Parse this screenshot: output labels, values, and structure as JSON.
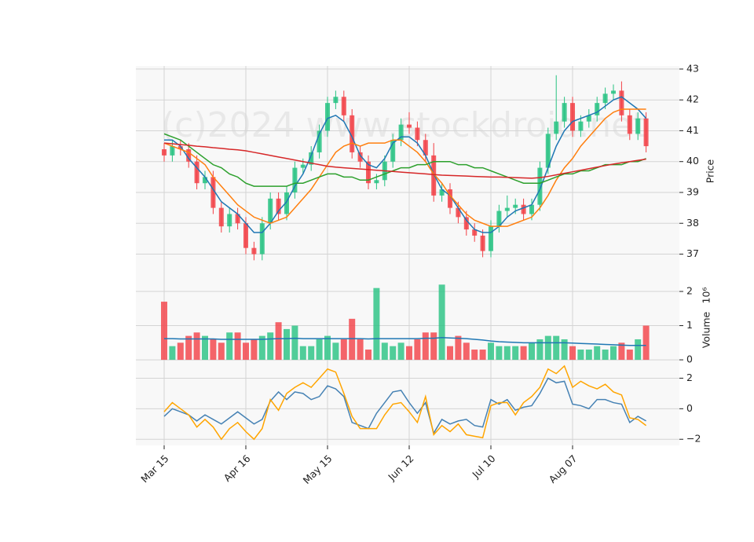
{
  "chart_data": {
    "type": "candlestick",
    "watermark": "(c)2024 www.stockdroid.net",
    "categories": [
      "Mar 15",
      null,
      null,
      null,
      null,
      null,
      null,
      null,
      null,
      null,
      "Apr 16",
      null,
      null,
      null,
      null,
      null,
      null,
      null,
      null,
      null,
      "May 15",
      null,
      null,
      null,
      null,
      null,
      null,
      null,
      null,
      null,
      "Jun 12",
      null,
      null,
      null,
      null,
      null,
      null,
      null,
      null,
      null,
      "Jul 10",
      null,
      null,
      null,
      null,
      null,
      null,
      null,
      null,
      null,
      "Aug 07",
      null,
      null,
      null,
      null,
      null,
      null,
      null,
      null,
      null
    ],
    "open": [
      40.4,
      40.2,
      40.5,
      40.4,
      40.0,
      39.3,
      39.5,
      38.5,
      37.9,
      38.3,
      38.0,
      37.2,
      37.0,
      38.0,
      38.8,
      38.3,
      39.0,
      39.8,
      39.9,
      40.3,
      41.0,
      41.9,
      42.1,
      41.5,
      40.3,
      40.0,
      39.3,
      39.4,
      40.0,
      40.7,
      41.2,
      41.1,
      40.7,
      40.2,
      38.9,
      39.1,
      38.5,
      38.2,
      37.8,
      37.6,
      37.1,
      37.9,
      38.4,
      38.5,
      38.6,
      38.3,
      38.6,
      39.8,
      40.9,
      41.3,
      41.9,
      41.0,
      41.3,
      41.5,
      41.9,
      42.2,
      42.3,
      41.5,
      40.9,
      41.4
    ],
    "high": [
      40.6,
      40.7,
      40.7,
      40.6,
      40.2,
      39.7,
      39.7,
      38.7,
      38.5,
      38.5,
      38.2,
      37.4,
      38.2,
      39.0,
      39.0,
      39.2,
      40.0,
      40.1,
      40.5,
      41.2,
      42.1,
      42.3,
      42.3,
      41.7,
      40.5,
      40.2,
      39.6,
      40.2,
      40.9,
      41.4,
      41.6,
      41.3,
      40.9,
      40.6,
      39.3,
      39.3,
      38.7,
      38.4,
      38.0,
      37.8,
      38.1,
      38.6,
      38.9,
      38.8,
      38.8,
      38.8,
      40.0,
      41.1,
      42.8,
      42.1,
      42.1,
      41.5,
      41.7,
      42.1,
      42.4,
      42.5,
      42.6,
      41.7,
      41.6,
      41.6
    ],
    "low": [
      40.0,
      40.0,
      40.2,
      39.8,
      39.1,
      39.1,
      38.3,
      37.7,
      37.7,
      37.8,
      37.0,
      36.8,
      36.8,
      37.8,
      38.1,
      38.1,
      38.8,
      39.6,
      39.7,
      40.1,
      40.8,
      41.7,
      41.3,
      40.1,
      39.8,
      39.1,
      39.1,
      39.2,
      39.8,
      40.5,
      40.9,
      40.5,
      40.0,
      38.7,
      38.7,
      38.3,
      38.0,
      37.6,
      37.4,
      36.9,
      36.9,
      37.7,
      38.2,
      38.3,
      38.1,
      38.1,
      38.4,
      39.6,
      40.7,
      41.1,
      40.8,
      40.8,
      41.1,
      41.3,
      41.7,
      42.0,
      41.3,
      40.7,
      40.7,
      40.3
    ],
    "close": [
      40.2,
      40.5,
      40.4,
      40.0,
      39.3,
      39.5,
      38.5,
      37.9,
      38.3,
      38.0,
      37.2,
      37.0,
      38.0,
      38.8,
      38.3,
      39.0,
      39.8,
      39.9,
      40.3,
      41.0,
      41.9,
      42.1,
      41.5,
      40.3,
      40.0,
      39.3,
      39.4,
      40.0,
      40.7,
      41.2,
      41.1,
      40.7,
      40.2,
      38.9,
      39.1,
      38.5,
      38.2,
      37.8,
      37.6,
      37.1,
      37.9,
      38.4,
      38.5,
      38.6,
      38.3,
      38.6,
      39.8,
      40.9,
      41.3,
      41.9,
      41.0,
      41.3,
      41.5,
      41.9,
      42.2,
      42.3,
      41.5,
      40.9,
      41.4,
      40.5
    ],
    "up_color": "#26c281",
    "down_color": "#f23f45",
    "moving_averages": [
      {
        "color": "#1f77b4",
        "values": [
          40.7,
          40.7,
          40.5,
          40.1,
          39.8,
          39.5,
          39.1,
          38.7,
          38.5,
          38.3,
          38.0,
          37.7,
          37.7,
          38.0,
          38.4,
          38.7,
          39.2,
          39.6,
          40.2,
          40.9,
          41.4,
          41.5,
          41.3,
          40.8,
          40.2,
          39.9,
          39.8,
          40.1,
          40.6,
          40.8,
          40.8,
          40.6,
          40.2,
          39.6,
          39.1,
          38.9,
          38.5,
          38.1,
          37.8,
          37.7,
          37.7,
          37.9,
          38.2,
          38.4,
          38.5,
          38.6,
          39.1,
          39.8,
          40.5,
          41.0,
          41.3,
          41.4,
          41.5,
          41.6,
          41.8,
          42.0,
          42.1,
          41.9,
          41.7,
          41.4
        ]
      },
      {
        "color": "#ff7f0e",
        "values": [
          40.6,
          40.5,
          40.4,
          40.3,
          40.1,
          39.9,
          39.5,
          39.2,
          38.9,
          38.6,
          38.4,
          38.2,
          38.1,
          38.0,
          38.1,
          38.2,
          38.5,
          38.8,
          39.1,
          39.5,
          39.9,
          40.3,
          40.5,
          40.6,
          40.5,
          40.6,
          40.6,
          40.6,
          40.7,
          40.7,
          40.5,
          40.3,
          40.0,
          39.6,
          39.3,
          38.9,
          38.6,
          38.3,
          38.1,
          38.0,
          37.9,
          37.9,
          37.9,
          38.0,
          38.1,
          38.2,
          38.5,
          38.9,
          39.4,
          39.8,
          40.1,
          40.5,
          40.8,
          41.1,
          41.4,
          41.6,
          41.7,
          41.7,
          41.7,
          41.7
        ]
      },
      {
        "color": "#2ca02c",
        "values": [
          40.9,
          40.8,
          40.7,
          40.5,
          40.3,
          40.1,
          39.9,
          39.8,
          39.6,
          39.5,
          39.3,
          39.2,
          39.2,
          39.2,
          39.2,
          39.2,
          39.3,
          39.3,
          39.4,
          39.5,
          39.6,
          39.6,
          39.5,
          39.5,
          39.4,
          39.4,
          39.5,
          39.6,
          39.7,
          39.8,
          39.8,
          39.9,
          39.9,
          40.0,
          40.0,
          40.0,
          39.9,
          39.9,
          39.8,
          39.8,
          39.7,
          39.6,
          39.5,
          39.4,
          39.3,
          39.3,
          39.3,
          39.4,
          39.5,
          39.6,
          39.6,
          39.7,
          39.7,
          39.8,
          39.9,
          39.9,
          39.9,
          40.0,
          40.0,
          40.1
        ]
      },
      {
        "color": "#d62728",
        "values": [
          40.6,
          40.58,
          40.55,
          40.53,
          40.5,
          40.48,
          40.45,
          40.43,
          40.4,
          40.38,
          40.35,
          40.3,
          40.25,
          40.2,
          40.15,
          40.1,
          40.05,
          40.0,
          39.95,
          39.9,
          39.85,
          39.82,
          39.8,
          39.78,
          39.76,
          39.74,
          39.72,
          39.7,
          39.68,
          39.66,
          39.64,
          39.62,
          39.6,
          39.58,
          39.56,
          39.55,
          39.54,
          39.53,
          39.52,
          39.51,
          39.5,
          39.5,
          39.49,
          39.48,
          39.47,
          39.46,
          39.48,
          39.52,
          39.57,
          39.62,
          39.67,
          39.72,
          39.77,
          39.82,
          39.87,
          39.92,
          39.96,
          40.0,
          40.04,
          40.08
        ]
      }
    ],
    "ylabel": "Price",
    "ylim": [
      36.3,
      43.1
    ],
    "yticks": [
      37,
      38,
      39,
      40,
      41,
      42,
      43
    ],
    "volume": [
      1.7,
      0.4,
      0.5,
      0.7,
      0.8,
      0.7,
      0.6,
      0.5,
      0.8,
      0.8,
      0.5,
      0.6,
      0.7,
      0.8,
      1.1,
      0.9,
      1.0,
      0.4,
      0.4,
      0.6,
      0.7,
      0.5,
      0.6,
      1.2,
      0.6,
      0.3,
      2.1,
      0.5,
      0.4,
      0.5,
      0.4,
      0.6,
      0.8,
      0.8,
      2.2,
      0.4,
      0.7,
      0.5,
      0.3,
      0.3,
      0.5,
      0.4,
      0.4,
      0.4,
      0.4,
      0.5,
      0.6,
      0.7,
      0.7,
      0.6,
      0.4,
      0.3,
      0.3,
      0.4,
      0.3,
      0.4,
      0.5,
      0.3,
      0.6,
      1.0
    ],
    "volume_ma": {
      "color": "#1f77b4",
      "values": [
        0.62,
        0.62,
        0.61,
        0.61,
        0.61,
        0.61,
        0.61,
        0.6,
        0.6,
        0.6,
        0.6,
        0.6,
        0.6,
        0.61,
        0.62,
        0.62,
        0.63,
        0.62,
        0.62,
        0.62,
        0.62,
        0.62,
        0.62,
        0.62,
        0.62,
        0.61,
        0.62,
        0.62,
        0.62,
        0.62,
        0.62,
        0.62,
        0.63,
        0.63,
        0.65,
        0.64,
        0.63,
        0.62,
        0.6,
        0.58,
        0.55,
        0.53,
        0.52,
        0.51,
        0.5,
        0.5,
        0.5,
        0.5,
        0.5,
        0.5,
        0.49,
        0.48,
        0.47,
        0.46,
        0.45,
        0.44,
        0.43,
        0.42,
        0.42,
        0.42
      ]
    },
    "volume_label": "Volume",
    "volume_scale": "10⁶",
    "volume_ylim": [
      -0.09,
      2.46
    ],
    "volume_yticks": [
      0,
      1,
      2
    ],
    "oscillator": [
      {
        "color": "#4682b4",
        "values": [
          -0.5,
          0.0,
          -0.2,
          -0.4,
          -0.8,
          -0.4,
          -0.7,
          -1.0,
          -0.6,
          -0.2,
          -0.6,
          -1.0,
          -0.7,
          0.5,
          1.1,
          0.6,
          1.1,
          1.0,
          0.6,
          0.8,
          1.5,
          1.3,
          0.8,
          -0.9,
          -1.1,
          -1.3,
          -0.3,
          0.4,
          1.1,
          1.2,
          0.4,
          -0.3,
          0.4,
          -1.6,
          -0.7,
          -1.0,
          -0.8,
          -0.7,
          -1.1,
          -1.2,
          0.6,
          0.3,
          0.6,
          -0.1,
          0.1,
          0.2,
          1.0,
          2.0,
          1.7,
          1.8,
          0.3,
          0.2,
          0.0,
          0.6,
          0.6,
          0.4,
          0.3,
          -0.9,
          -0.5,
          -0.8
        ]
      },
      {
        "color": "#ffa500",
        "values": [
          -0.2,
          0.4,
          0.0,
          -0.4,
          -1.2,
          -0.7,
          -1.2,
          -2.0,
          -1.3,
          -0.9,
          -1.5,
          -2.0,
          -1.3,
          0.6,
          -0.1,
          1.0,
          1.4,
          1.7,
          1.4,
          2.0,
          2.6,
          2.4,
          1.0,
          -0.5,
          -1.3,
          -1.3,
          -1.3,
          -0.4,
          0.3,
          0.4,
          -0.2,
          -0.9,
          0.8,
          -1.7,
          -1.1,
          -1.5,
          -1.0,
          -1.7,
          -1.8,
          -1.9,
          0.2,
          0.4,
          0.4,
          -0.4,
          0.4,
          0.8,
          1.4,
          2.6,
          2.3,
          2.8,
          1.4,
          1.8,
          1.5,
          1.3,
          1.6,
          1.1,
          0.9,
          -0.6,
          -0.7,
          -1.1
        ]
      }
    ],
    "oscillator_ylim": [
      -2.4,
      3.0
    ],
    "oscillator_yticks": [
      {
        "value": -2,
        "label": "−2"
      },
      0,
      2
    ],
    "grid": true
  }
}
